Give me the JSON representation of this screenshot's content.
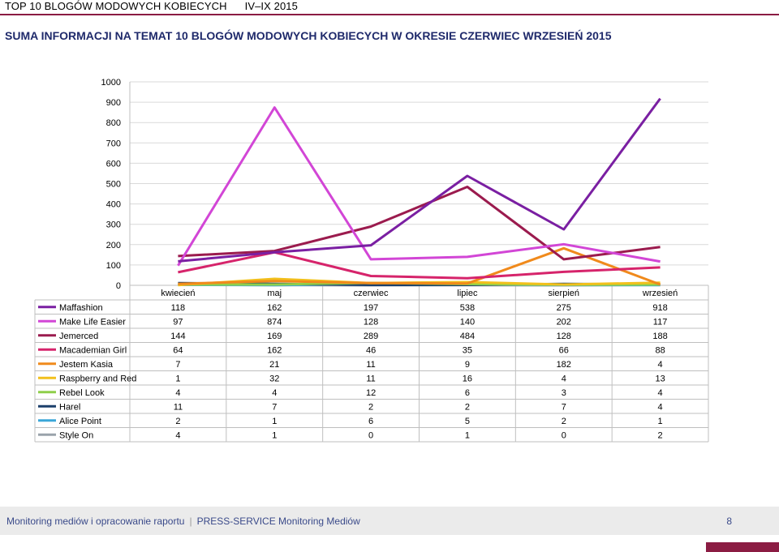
{
  "header": {
    "top_title": "TOP 10 BLOGÓW MODOWYCH KOBIECYCH",
    "period": "IV–IX 2015",
    "page_title": "SUMA INFORMACJI NA TEMAT 10 BLOGÓW MODOWYCH KOBIECYCH W OKRESIE CZERWIEC  WRZESIEŃ 2015"
  },
  "footer": {
    "left_text": "Monitoring mediów i opracowanie raportu",
    "separator": "|",
    "right_text": "PRESS-SERVICE Monitoring Mediów",
    "page_number": "8"
  },
  "chart_data": {
    "type": "line",
    "categories": [
      "kwiecień",
      "maj",
      "czerwiec",
      "lipiec",
      "sierpień",
      "wrzesień"
    ],
    "ylim": [
      0,
      1000
    ],
    "yticks": [
      0,
      100,
      200,
      300,
      400,
      500,
      600,
      700,
      800,
      900,
      1000
    ],
    "grid": true,
    "legend_placement": "data-table-below",
    "series": [
      {
        "name": "Maffashion",
        "color": "#7a1fa2",
        "values": [
          118,
          162,
          197,
          538,
          275,
          918
        ]
      },
      {
        "name": "Make Life Easier",
        "color": "#d246d6",
        "values": [
          97,
          874,
          128,
          140,
          202,
          117
        ]
      },
      {
        "name": "Jemerced",
        "color": "#9b1b4e",
        "values": [
          144,
          169,
          289,
          484,
          128,
          188
        ]
      },
      {
        "name": "Macademian Girl",
        "color": "#d6246b",
        "values": [
          64,
          162,
          46,
          35,
          66,
          88
        ]
      },
      {
        "name": "Jestem Kasia",
        "color": "#f08a1c",
        "values": [
          7,
          21,
          11,
          9,
          182,
          4
        ]
      },
      {
        "name": "Raspberry and Red",
        "color": "#f2c01c",
        "values": [
          1,
          32,
          11,
          16,
          4,
          13
        ]
      },
      {
        "name": "Rebel Look",
        "color": "#8fcf4a",
        "values": [
          4,
          4,
          12,
          6,
          3,
          4
        ]
      },
      {
        "name": "Harel",
        "color": "#1b3f6b",
        "values": [
          11,
          7,
          2,
          2,
          7,
          4
        ]
      },
      {
        "name": "Alice Point",
        "color": "#3ba7d8",
        "values": [
          2,
          1,
          6,
          5,
          2,
          1
        ]
      },
      {
        "name": "Style On",
        "color": "#9aa3ab",
        "values": [
          4,
          1,
          0,
          1,
          0,
          2
        ]
      }
    ]
  }
}
